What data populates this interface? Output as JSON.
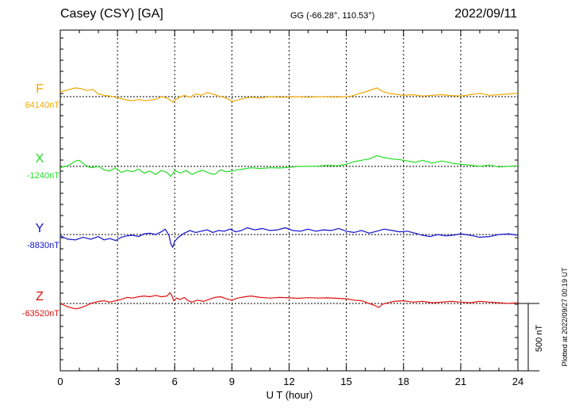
{
  "header": {
    "title": "Casey (CSY)  [GA]",
    "coords": "GG (-66.28°, 110.53°)",
    "date": "2022/09/11"
  },
  "footer": {
    "plotted": "Plotted at 2022/09/27 00:19 UT"
  },
  "scale_bar": {
    "label": "500 nT",
    "value_nT": 500
  },
  "colors": {
    "F": "#f0a800",
    "X": "#22dd22",
    "Y": "#1010cc",
    "Z": "#dd1010"
  },
  "chart_data": {
    "type": "line",
    "xlabel": "U T (hour)",
    "xlim": [
      0,
      24
    ],
    "xticks": [
      0,
      3,
      6,
      9,
      12,
      15,
      18,
      21,
      24
    ],
    "unit": "nT",
    "series": [
      {
        "name": "F",
        "baseline_label": "64140nT",
        "baseline": 64140,
        "x": [
          0,
          0.5,
          0.8,
          1.1,
          1.4,
          1.7,
          2.0,
          2.3,
          2.6,
          2.9,
          3.2,
          3.5,
          3.8,
          4.1,
          4.4,
          4.7,
          5.0,
          5.3,
          5.6,
          5.8,
          5.9,
          6.0,
          6.2,
          6.5,
          6.8,
          7.1,
          7.4,
          7.7,
          8.0,
          8.3,
          8.7,
          9.0,
          9.3,
          9.7,
          10.0,
          10.5,
          11.0,
          11.5,
          12.0,
          12.5,
          13.0,
          13.5,
          14.0,
          14.5,
          15.0,
          15.3,
          15.6,
          16.0,
          16.3,
          16.6,
          16.9,
          17.2,
          17.5,
          18.0,
          18.5,
          19.0,
          19.5,
          20.0,
          20.5,
          21.0,
          21.5,
          22.0,
          22.5,
          23.0,
          23.5,
          24.0
        ],
        "y": [
          64175,
          64195,
          64205,
          64200,
          64185,
          64195,
          64160,
          64150,
          64145,
          64135,
          64125,
          64115,
          64110,
          64120,
          64110,
          64115,
          64120,
          64140,
          64130,
          64110,
          64100,
          64115,
          64130,
          64150,
          64135,
          64160,
          64150,
          64170,
          64160,
          64145,
          64130,
          64105,
          64115,
          64130,
          64135,
          64130,
          64140,
          64135,
          64137,
          64140,
          64135,
          64140,
          64138,
          64137,
          64140,
          64145,
          64160,
          64175,
          64190,
          64205,
          64180,
          64165,
          64160,
          64150,
          64155,
          64145,
          64150,
          64155,
          64148,
          64145,
          64155,
          64165,
          64150,
          64155,
          64160,
          64165
        ]
      },
      {
        "name": "X",
        "baseline_label": "-1240nT",
        "baseline": -1240,
        "x": [
          0,
          0.4,
          0.8,
          1.0,
          1.3,
          1.6,
          2.0,
          2.3,
          2.6,
          2.9,
          3.2,
          3.5,
          3.8,
          4.1,
          4.4,
          4.7,
          5.0,
          5.3,
          5.6,
          5.8,
          6.0,
          6.3,
          6.6,
          6.9,
          7.2,
          7.5,
          7.8,
          8.1,
          8.4,
          8.7,
          9.0,
          9.3,
          9.6,
          10.0,
          10.5,
          11.0,
          11.5,
          12.0,
          12.5,
          13.0,
          13.5,
          14.0,
          14.5,
          15.0,
          15.4,
          15.8,
          16.2,
          16.6,
          17.0,
          17.4,
          17.8,
          18.2,
          18.6,
          19.0,
          19.5,
          20.0,
          20.5,
          21.0,
          21.5,
          22.0,
          22.5,
          23.0,
          23.5,
          24.0
        ],
        "y": [
          -1250,
          -1235,
          -1200,
          -1195,
          -1230,
          -1250,
          -1240,
          -1265,
          -1275,
          -1250,
          -1285,
          -1270,
          -1280,
          -1260,
          -1290,
          -1275,
          -1300,
          -1270,
          -1285,
          -1315,
          -1270,
          -1290,
          -1270,
          -1300,
          -1280,
          -1270,
          -1290,
          -1300,
          -1265,
          -1280,
          -1275,
          -1265,
          -1260,
          -1250,
          -1255,
          -1250,
          -1252,
          -1247,
          -1240,
          -1240,
          -1238,
          -1232,
          -1235,
          -1225,
          -1205,
          -1195,
          -1185,
          -1160,
          -1175,
          -1185,
          -1190,
          -1200,
          -1210,
          -1195,
          -1215,
          -1200,
          -1215,
          -1225,
          -1230,
          -1240,
          -1230,
          -1245,
          -1240,
          -1235
        ]
      },
      {
        "name": "Y",
        "baseline_label": "-8830nT",
        "baseline": -8830,
        "x": [
          0,
          0.4,
          0.8,
          1.2,
          1.6,
          2.0,
          2.3,
          2.6,
          2.9,
          3.2,
          3.5,
          3.8,
          4.1,
          4.4,
          4.7,
          5.0,
          5.3,
          5.5,
          5.7,
          5.8,
          5.9,
          6.0,
          6.2,
          6.5,
          6.8,
          7.1,
          7.4,
          7.7,
          8.0,
          8.3,
          8.6,
          8.9,
          9.2,
          9.5,
          9.8,
          10.2,
          10.6,
          11.0,
          11.4,
          11.8,
          12.2,
          12.6,
          13.0,
          13.4,
          13.8,
          14.2,
          14.6,
          15.0,
          15.4,
          15.8,
          16.2,
          16.6,
          17.0,
          17.4,
          17.8,
          18.2,
          18.6,
          19.0,
          19.4,
          19.8,
          20.2,
          20.6,
          21.0,
          21.5,
          22.0,
          22.5,
          23.0,
          23.5,
          24.0
        ],
        "y": [
          -8840,
          -8865,
          -8870,
          -8850,
          -8865,
          -8845,
          -8870,
          -8860,
          -8875,
          -8850,
          -8840,
          -8835,
          -8845,
          -8825,
          -8820,
          -8830,
          -8810,
          -8790,
          -8835,
          -8900,
          -8925,
          -8880,
          -8850,
          -8820,
          -8800,
          -8815,
          -8805,
          -8795,
          -8815,
          -8800,
          -8805,
          -8790,
          -8810,
          -8800,
          -8780,
          -8795,
          -8785,
          -8800,
          -8795,
          -8780,
          -8800,
          -8805,
          -8790,
          -8805,
          -8795,
          -8800,
          -8785,
          -8805,
          -8815,
          -8800,
          -8820,
          -8805,
          -8790,
          -8800,
          -8810,
          -8805,
          -8820,
          -8835,
          -8845,
          -8830,
          -8840,
          -8835,
          -8825,
          -8835,
          -8850,
          -8845,
          -8830,
          -8825,
          -8835
        ]
      },
      {
        "name": "Z",
        "baseline_label": "-63520nT",
        "baseline": -63520,
        "x": [
          0,
          0.4,
          0.8,
          1.0,
          1.3,
          1.6,
          2.0,
          2.3,
          2.6,
          2.9,
          3.2,
          3.5,
          3.8,
          4.1,
          4.4,
          4.7,
          5.0,
          5.3,
          5.6,
          5.75,
          5.85,
          5.95,
          6.1,
          6.3,
          6.5,
          6.7,
          6.9,
          7.2,
          7.5,
          7.8,
          8.1,
          8.4,
          8.7,
          9.0,
          9.3,
          9.7,
          10.0,
          10.5,
          11.0,
          11.5,
          12.0,
          12.5,
          13.0,
          13.5,
          14.0,
          14.5,
          15.0,
          15.4,
          15.8,
          16.2,
          16.5,
          16.7,
          16.9,
          17.2,
          17.5,
          18.0,
          18.5,
          19.0,
          19.5,
          20.0,
          20.5,
          21.0,
          21.5,
          22.0,
          22.5,
          23.0,
          23.5,
          24.0
        ],
        "y": [
          -63520,
          -63545,
          -63560,
          -63555,
          -63540,
          -63520,
          -63505,
          -63500,
          -63510,
          -63500,
          -63490,
          -63475,
          -63480,
          -63470,
          -63465,
          -63470,
          -63460,
          -63470,
          -63465,
          -63440,
          -63460,
          -63500,
          -63480,
          -63490,
          -63475,
          -63500,
          -63510,
          -63495,
          -63505,
          -63490,
          -63475,
          -63470,
          -63485,
          -63495,
          -63480,
          -63470,
          -63465,
          -63475,
          -63480,
          -63475,
          -63478,
          -63482,
          -63477,
          -63480,
          -63478,
          -63482,
          -63485,
          -63495,
          -63500,
          -63520,
          -63535,
          -63550,
          -63525,
          -63515,
          -63505,
          -63500,
          -63510,
          -63505,
          -63515,
          -63510,
          -63505,
          -63510,
          -63515,
          -63505,
          -63510,
          -63515,
          -63520,
          -63515
        ]
      }
    ]
  }
}
